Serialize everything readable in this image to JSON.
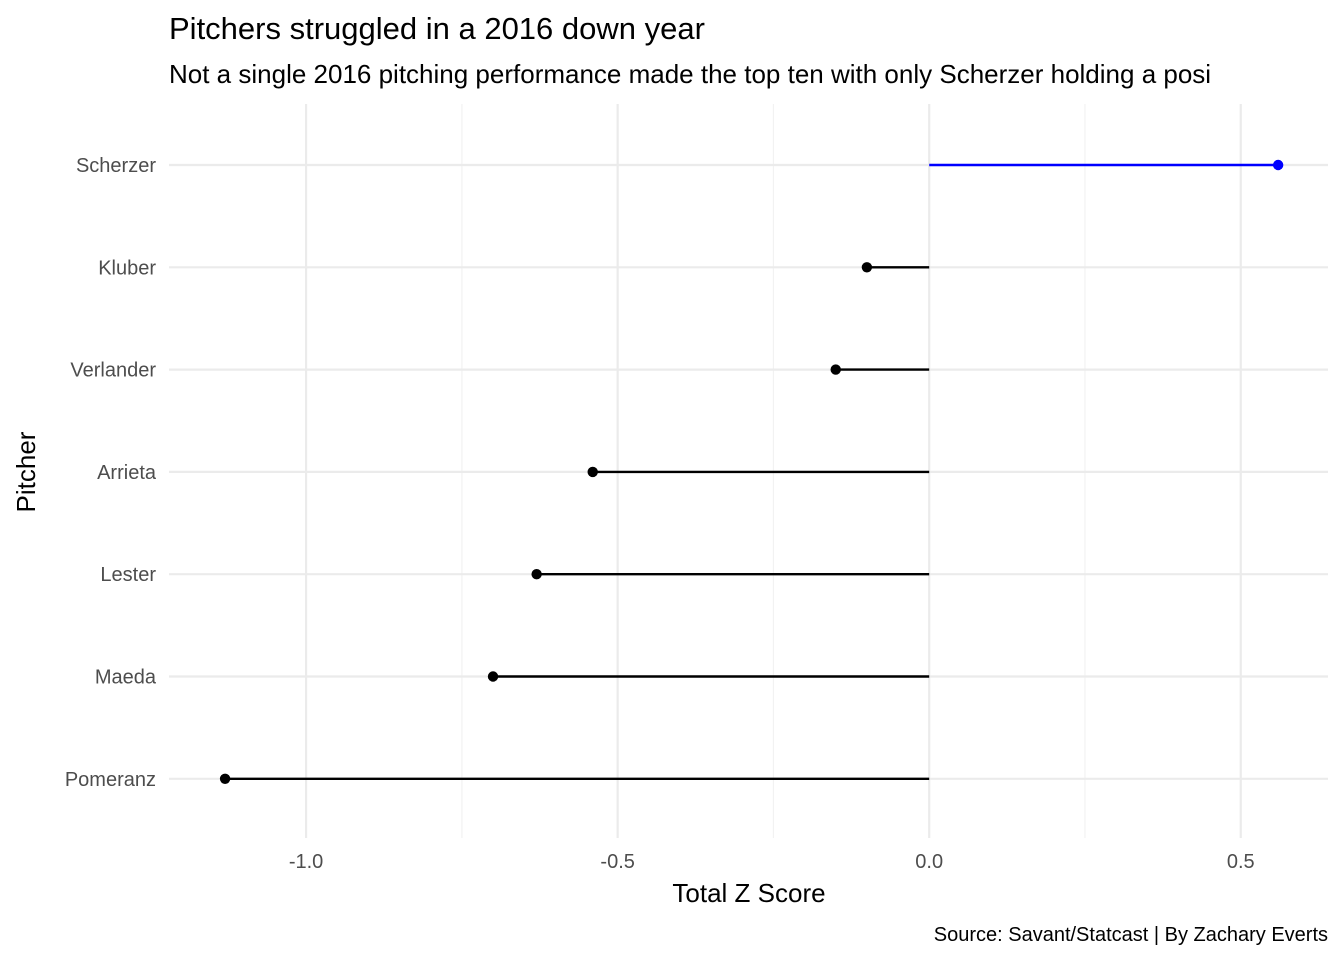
{
  "chart_data": {
    "type": "lollipop",
    "orientation": "horizontal",
    "title": "Pitchers struggled in a 2016 down year",
    "subtitle": "Not a single 2016 pitching performance made the top ten with only Scherzer holding a posi",
    "xlabel": "Total Z Score",
    "ylabel": "Pitcher",
    "caption": "Source: Savant/Statcast | By Zachary Everts",
    "xlim": [
      -1.22,
      0.64
    ],
    "x_ticks": [
      {
        "value": -1.0,
        "label": "-1.0"
      },
      {
        "value": -0.5,
        "label": "-0.5"
      },
      {
        "value": 0.0,
        "label": "0.0"
      },
      {
        "value": 0.5,
        "label": "0.5"
      }
    ],
    "x_minor_ticks": [
      -0.75,
      -0.25,
      0.25
    ],
    "grid": true,
    "colors": {
      "positive": "#0000ff",
      "negative": "#000000",
      "grid_major": "#ebebeb",
      "grid_minor": "#f2f2f2"
    },
    "points": [
      {
        "pitcher": "Scherzer",
        "value": 0.56
      },
      {
        "pitcher": "Kluber",
        "value": -0.1
      },
      {
        "pitcher": "Verlander",
        "value": -0.15
      },
      {
        "pitcher": "Arrieta",
        "value": -0.54
      },
      {
        "pitcher": "Lester",
        "value": -0.63
      },
      {
        "pitcher": "Maeda",
        "value": -0.7
      },
      {
        "pitcher": "Pomeranz",
        "value": -1.13
      }
    ]
  }
}
